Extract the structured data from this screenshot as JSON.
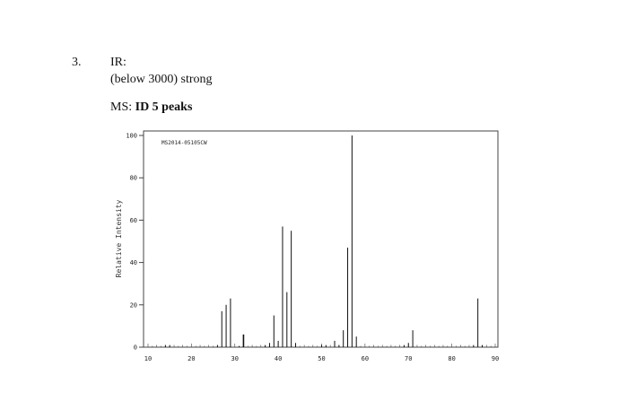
{
  "question": {
    "number": "3.",
    "ir_title": "IR:",
    "ir_detail": "(below 3000) strong",
    "ms_prefix": "MS:",
    "ms_task": "ID 5 peaks"
  },
  "chart_data": {
    "type": "bar",
    "title": "",
    "annotation": "MS2014-05105CW",
    "xlabel": "",
    "ylabel": "Relative Intensity",
    "xlim": [
      10,
      90
    ],
    "ylim": [
      0,
      100
    ],
    "x_ticks": [
      10,
      20,
      30,
      40,
      50,
      60,
      70,
      80,
      90
    ],
    "y_ticks": [
      0,
      20,
      40,
      60,
      80,
      100
    ],
    "grid": false,
    "peaks": [
      {
        "x": 14,
        "y": 1
      },
      {
        "x": 15,
        "y": 1
      },
      {
        "x": 26,
        "y": 1
      },
      {
        "x": 27,
        "y": 17
      },
      {
        "x": 28,
        "y": 20
      },
      {
        "x": 29,
        "y": 23
      },
      {
        "x": 31,
        "y": 0.5
      },
      {
        "x": 32,
        "y": 6
      },
      {
        "x": 37,
        "y": 1
      },
      {
        "x": 38,
        "y": 2
      },
      {
        "x": 39,
        "y": 15
      },
      {
        "x": 40,
        "y": 3
      },
      {
        "x": 41,
        "y": 57
      },
      {
        "x": 42,
        "y": 26
      },
      {
        "x": 43,
        "y": 55
      },
      {
        "x": 44,
        "y": 2
      },
      {
        "x": 50,
        "y": 1
      },
      {
        "x": 51,
        "y": 1
      },
      {
        "x": 53,
        "y": 3
      },
      {
        "x": 54,
        "y": 1
      },
      {
        "x": 55,
        "y": 8
      },
      {
        "x": 56,
        "y": 47
      },
      {
        "x": 57,
        "y": 100
      },
      {
        "x": 58,
        "y": 5
      },
      {
        "x": 69,
        "y": 1
      },
      {
        "x": 70,
        "y": 2
      },
      {
        "x": 71,
        "y": 8
      },
      {
        "x": 85,
        "y": 1
      },
      {
        "x": 86,
        "y": 23
      },
      {
        "x": 87,
        "y": 1
      }
    ]
  }
}
